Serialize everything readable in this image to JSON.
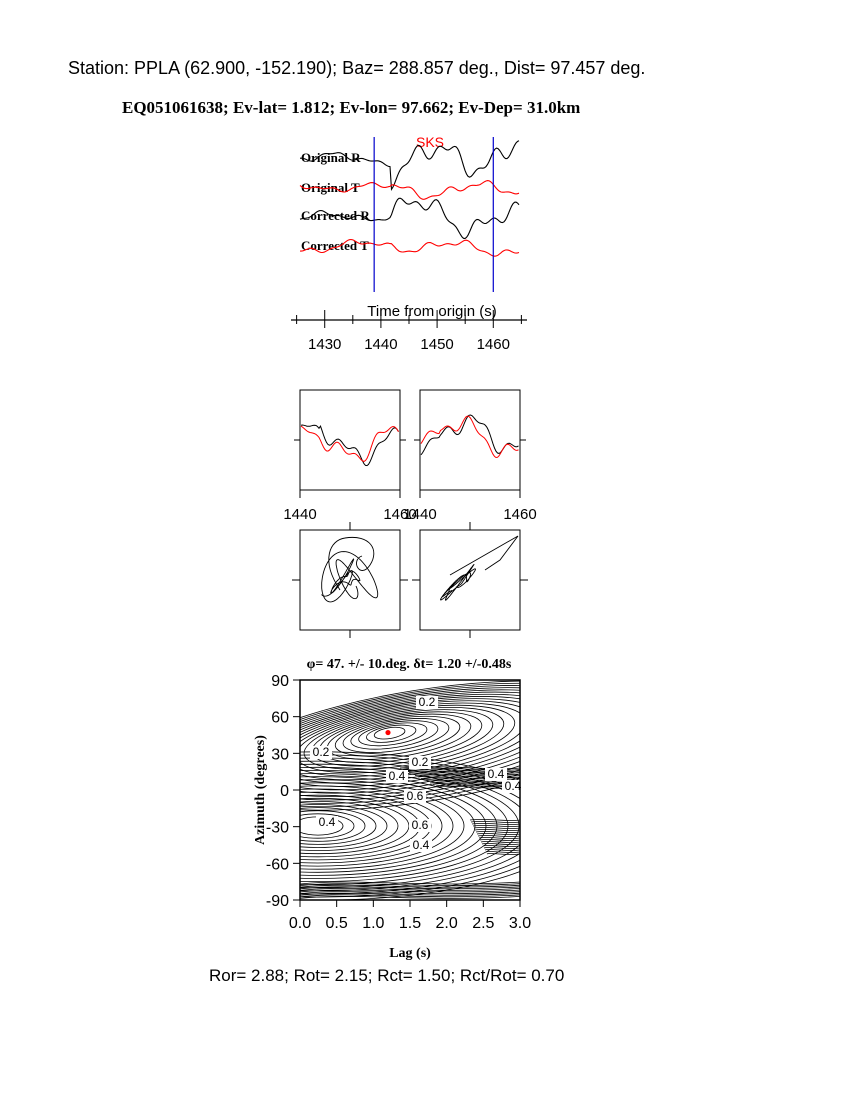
{
  "header": {
    "station_line": "Station: PPLA (62.900, -152.190); Baz=  288.857 deg., Dist=   97.457 deg.",
    "event_line": "EQ051061638; Ev-lat=   1.812; Ev-lon=  97.662; Ev-Dep= 31.0km"
  },
  "colors": {
    "trace_red": "#ff0000",
    "marker_blue": "#0000cc",
    "ink": "#000000"
  },
  "chart_data": [
    {
      "type": "line",
      "panel": "seismograms",
      "phase_label": "SKS",
      "xlabel": "Time from origin (s)",
      "xlim": [
        1424,
        1466
      ],
      "xticks": [
        1430,
        1440,
        1450,
        1460
      ],
      "window_markers_s": [
        1438.8,
        1460.0
      ],
      "series": [
        {
          "name": "Original R",
          "color": "#000000"
        },
        {
          "name": "Original T",
          "color": "#ff0000"
        },
        {
          "name": "Corrected R",
          "color": "#000000"
        },
        {
          "name": "Corrected T",
          "color": "#ff0000"
        }
      ]
    },
    {
      "type": "line",
      "panel": "waveform-comparison",
      "xlim": [
        1440,
        1460
      ],
      "left_xticks": [
        "1440",
        "1460"
      ],
      "right_xticks": [
        "1440",
        "1460"
      ]
    },
    {
      "type": "line",
      "panel": "particle-motion"
    },
    {
      "type": "heatmap",
      "panel": "energy-contour",
      "title": "φ= 47. +/- 10.deg. δt= 1.20 +/-0.48s",
      "xlabel": "Lag (s)",
      "ylabel": "Azimuth (degrees)",
      "xlim": [
        0,
        3
      ],
      "ylim": [
        -90,
        90
      ],
      "xticks": [
        "0.0",
        "0.5",
        "1.0",
        "1.5",
        "2.0",
        "2.5",
        "3.0"
      ],
      "yticks": [
        "90",
        "60",
        "30",
        "0",
        "-30",
        "-60",
        "-90"
      ],
      "best_fit": {
        "lag_s": 1.2,
        "azimuth_deg": 47
      },
      "contour_labels": [
        "0.2",
        "0.2",
        "0.2",
        "0.4",
        "0.4",
        "0.4",
        "0.6",
        "0.6",
        "0.4",
        "0.4"
      ]
    }
  ],
  "footer": {
    "ratios_line": "Ror= 2.88; Rot= 2.15; Rct= 1.50; Rct/Rot= 0.70"
  }
}
